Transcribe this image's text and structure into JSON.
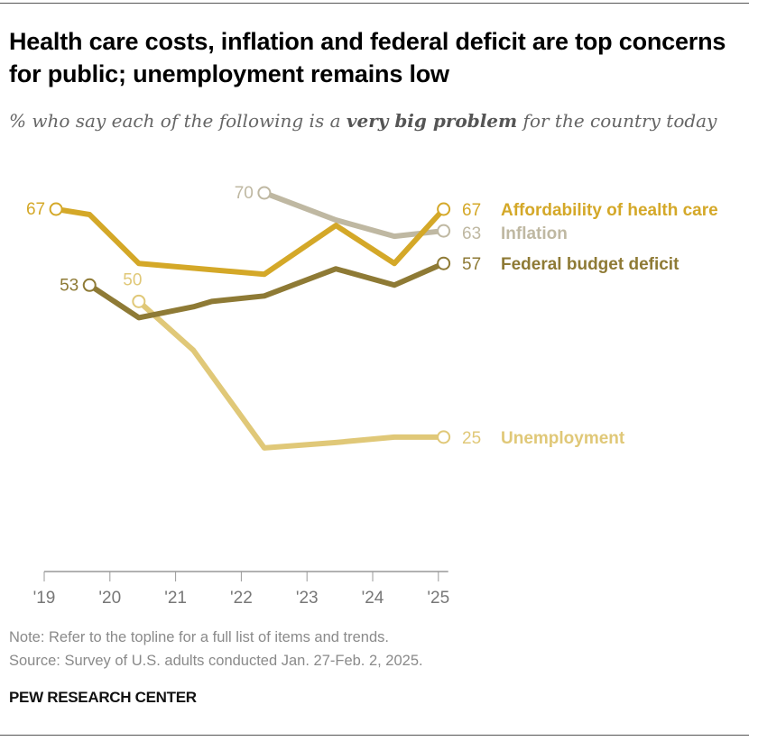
{
  "title": "Health care costs, inflation and federal deficit are top concerns for public; unemployment remains low",
  "subtitle": {
    "pre": "% who say each of the following is a ",
    "bold": "very big problem",
    "post": " for the country today"
  },
  "note": "Note: Refer to the topline for a full list of items and trends.",
  "source": "Source: Survey of U.S. adults conducted Jan. 27-Feb. 2, 2025.",
  "brand": "PEW RESEARCH CENTER",
  "chart_data": {
    "type": "line",
    "title": "Health care costs, inflation and federal deficit are top concerns for public; unemployment remains low",
    "xlabel": "",
    "ylabel": "",
    "xlim": [
      2019,
      2025.2
    ],
    "ylim": [
      0,
      75
    ],
    "x_ticks": [
      2019,
      2020,
      2021,
      2022,
      2023,
      2024,
      2025
    ],
    "x_tick_labels": [
      "'19",
      "'20",
      "'21",
      "'22",
      "'23",
      "'24",
      "'25"
    ],
    "grid": false,
    "legend": "direct labels at line ends",
    "series": [
      {
        "name": "Affordability of health care",
        "color": "#d4a828",
        "x": [
          2019.18,
          2019.69,
          2020.44,
          2022.35,
          2023.44,
          2024.33,
          2025.08
        ],
        "values": [
          67,
          66,
          57,
          55,
          64,
          57,
          67
        ]
      },
      {
        "name": "Inflation",
        "color": "#bfb8a2",
        "x": [
          2022.35,
          2023.44,
          2024.33,
          2025.08
        ],
        "values": [
          70,
          65,
          62,
          63
        ]
      },
      {
        "name": "Federal budget deficit",
        "color": "#8e7a35",
        "x": [
          2019.69,
          2020.44,
          2021.27,
          2021.55,
          2022.35,
          2023.44,
          2024.33,
          2025.08
        ],
        "values": [
          53,
          47,
          49,
          50,
          51,
          56,
          53,
          57
        ]
      },
      {
        "name": "Unemployment",
        "color": "#e0c878",
        "x": [
          2020.44,
          2021.27,
          2022.35,
          2023.44,
          2024.33,
          2025.08
        ],
        "values": [
          50,
          41,
          23,
          24,
          25,
          25
        ]
      }
    ]
  }
}
